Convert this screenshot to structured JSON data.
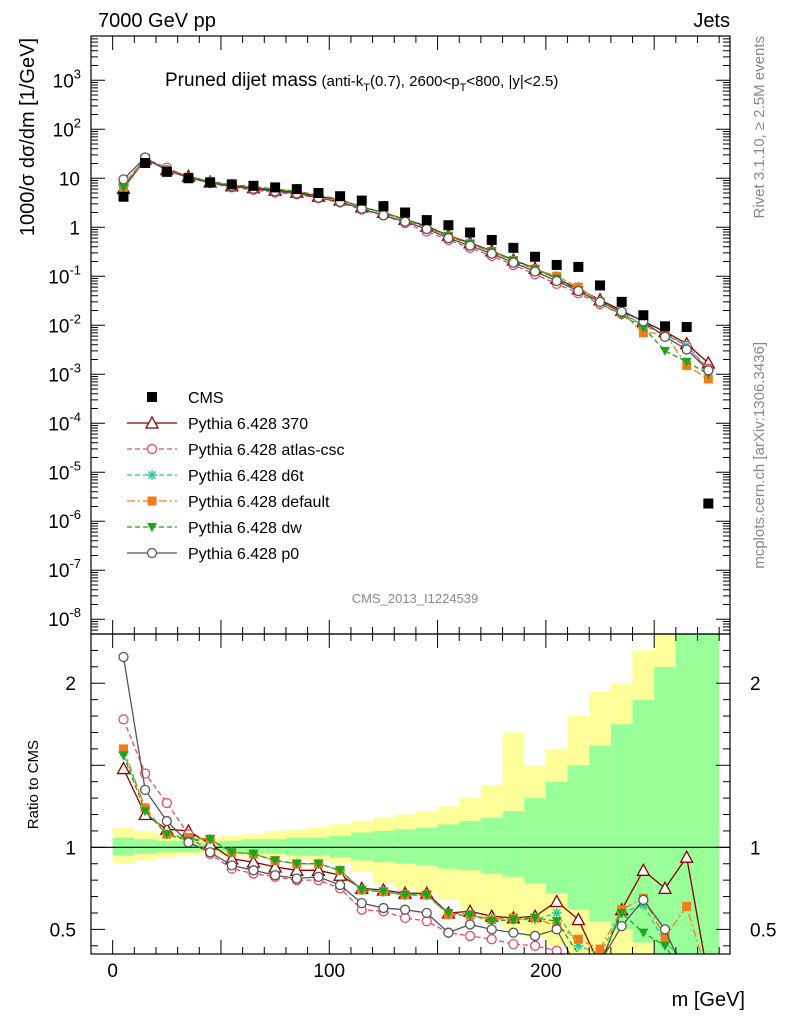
{
  "header": {
    "left": "7000 GeV pp",
    "right": "Jets"
  },
  "side_text": {
    "rivet": "Rivet 3.1.10, ≥ 2.5M events",
    "mcplots": "mcplots.cern.ch [arXiv:1306.3436]"
  },
  "chart_data": {
    "type": "line",
    "title_main": "Pruned dijet mass",
    "title_detail": "(anti-kT(0.7), 2600<pT<800, |y|<2.5)",
    "analysis_label": "CMS_2013_I1224539",
    "xlabel": "m [GeV]",
    "ylabel_top": "1000/σ dσ/dm [1/GeV]",
    "ylabel_bottom": "Ratio to CMS",
    "xlim": [
      -10,
      285
    ],
    "ylim_top": [
      5e-09,
      8000
    ],
    "ylim_bottom": [
      0.35,
      2.3
    ],
    "x_ticks": [
      0,
      100,
      200
    ],
    "y_ticks_top": [
      {
        "v": 1e-08,
        "label": "10",
        "exp": "-8"
      },
      {
        "v": 1e-07,
        "label": "10",
        "exp": "-7"
      },
      {
        "v": 1e-06,
        "label": "10",
        "exp": "-6"
      },
      {
        "v": 1e-05,
        "label": "10",
        "exp": "-5"
      },
      {
        "v": 0.0001,
        "label": "10",
        "exp": "-4"
      },
      {
        "v": 0.001,
        "label": "10",
        "exp": "-3"
      },
      {
        "v": 0.01,
        "label": "10",
        "exp": "-2"
      },
      {
        "v": 0.1,
        "label": "10",
        "exp": "-1"
      },
      {
        "v": 1,
        "label": "1",
        "exp": ""
      },
      {
        "v": 10,
        "label": "10",
        "exp": ""
      },
      {
        "v": 100,
        "label": "10",
        "exp": "2"
      },
      {
        "v": 1000,
        "label": "10",
        "exp": "3"
      }
    ],
    "y_ticks_bottom": [
      0.5,
      1,
      2
    ],
    "x": [
      5,
      15,
      25,
      35,
      45,
      55,
      65,
      75,
      85,
      95,
      105,
      115,
      125,
      135,
      145,
      155,
      165,
      175,
      185,
      195,
      205,
      215,
      225,
      235,
      245,
      255,
      265,
      275
    ],
    "data": {
      "name": "CMS",
      "values": [
        4.2,
        20.5,
        13.5,
        10.0,
        8.2,
        7.5,
        7.0,
        6.5,
        6.0,
        5.0,
        4.3,
        3.5,
        2.7,
        2.0,
        1.4,
        1.1,
        0.78,
        0.55,
        0.38,
        0.25,
        0.17,
        0.155,
        0.065,
        0.03,
        0.016,
        0.0095,
        0.0092,
        2.3e-06
      ]
    },
    "series": [
      {
        "name": "Pythia 6.428 370",
        "color": "#8b0000",
        "dash": "",
        "marker": "triangle-open",
        "values": [
          6.2,
          24.5,
          15.0,
          11.0,
          8.4,
          7.0,
          6.4,
          5.7,
          5.2,
          4.3,
          3.6,
          2.6,
          2.0,
          1.45,
          1.05,
          0.68,
          0.48,
          0.33,
          0.215,
          0.145,
          0.09,
          0.055,
          0.033,
          0.02,
          0.012,
          0.0074,
          0.0042,
          0.0017
        ],
        "ratio": [
          1.48,
          1.2,
          1.11,
          1.1,
          1.02,
          0.93,
          0.91,
          0.88,
          0.86,
          0.86,
          0.83,
          0.75,
          0.74,
          0.72,
          0.72,
          0.6,
          0.61,
          0.58,
          0.57,
          0.58,
          0.67,
          0.56,
          0.28,
          0.62,
          0.86,
          0.75,
          0.94,
          0.2
        ]
      },
      {
        "name": "Pythia 6.428 atlas-csc",
        "color": "#e8496b",
        "dash": "5,3",
        "marker": "circle-open",
        "values": [
          7.5,
          25.0,
          16.5,
          10.5,
          8.0,
          6.5,
          5.8,
          5.1,
          4.7,
          3.9,
          3.2,
          2.3,
          1.75,
          1.22,
          0.82,
          0.55,
          0.38,
          0.26,
          0.17,
          0.11,
          0.07,
          0.045,
          0.027,
          0.017,
          0.01,
          0.0065,
          0.0038,
          0.0013
        ],
        "ratio": [
          1.78,
          1.45,
          1.27,
          1.08,
          0.96,
          0.87,
          0.84,
          0.82,
          0.8,
          0.8,
          0.75,
          0.62,
          0.61,
          0.57,
          0.55,
          0.48,
          0.46,
          0.44,
          0.41,
          0.4,
          0.37,
          0.3,
          0.25,
          0.25,
          0.2,
          0.2,
          0.2,
          0.2
        ]
      },
      {
        "name": "Pythia 6.428 d6t",
        "color": "#20c997",
        "dash": "5,3",
        "marker": "star",
        "values": [
          6.6,
          25.5,
          14.6,
          10.5,
          8.6,
          7.3,
          6.7,
          6.0,
          5.4,
          4.5,
          3.7,
          2.6,
          1.95,
          1.42,
          1.0,
          0.66,
          0.46,
          0.32,
          0.21,
          0.14,
          0.1,
          0.06,
          0.03,
          0.018,
          0.01,
          0.0068,
          0.0038,
          0.0012
        ],
        "ratio": [
          1.58,
          1.24,
          1.08,
          1.05,
          1.05,
          0.97,
          0.96,
          0.92,
          0.9,
          0.9,
          0.86,
          0.74,
          0.73,
          0.71,
          0.71,
          0.59,
          0.58,
          0.57,
          0.56,
          0.56,
          0.6,
          0.4,
          0.35,
          0.6,
          0.65,
          0.42,
          0.3,
          0.2
        ]
      },
      {
        "name": "Pythia 6.428 default",
        "color": "#f07d1d",
        "dash": "8,3,2,3",
        "marker": "square",
        "values": [
          6.6,
          25.5,
          14.6,
          10.6,
          8.6,
          7.3,
          6.7,
          6.0,
          5.4,
          4.5,
          3.7,
          2.6,
          1.95,
          1.42,
          1.0,
          0.66,
          0.46,
          0.32,
          0.21,
          0.14,
          0.1,
          0.06,
          0.03,
          0.018,
          0.007,
          0.0068,
          0.0015,
          0.0008
        ],
        "ratio": [
          1.6,
          1.24,
          1.08,
          1.06,
          1.05,
          0.97,
          0.96,
          0.92,
          0.9,
          0.9,
          0.86,
          0.74,
          0.73,
          0.71,
          0.71,
          0.59,
          0.59,
          0.56,
          0.57,
          0.57,
          0.52,
          0.44,
          0.38,
          0.62,
          0.69,
          0.45,
          0.64,
          0.2
        ]
      },
      {
        "name": "Pythia 6.428 dw",
        "color": "#1da51d",
        "dash": "5,3",
        "marker": "triangle-down",
        "values": [
          6.5,
          25.5,
          14.6,
          10.4,
          8.6,
          7.3,
          6.7,
          6.0,
          5.4,
          4.5,
          3.7,
          2.6,
          1.95,
          1.42,
          1.0,
          0.66,
          0.46,
          0.32,
          0.21,
          0.14,
          0.09,
          0.05,
          0.028,
          0.016,
          0.009,
          0.003,
          0.0018,
          0.001
        ],
        "ratio": [
          1.56,
          1.22,
          1.08,
          1.04,
          1.05,
          0.97,
          0.96,
          0.92,
          0.9,
          0.9,
          0.86,
          0.74,
          0.73,
          0.71,
          0.71,
          0.6,
          0.59,
          0.55,
          0.56,
          0.57,
          0.55,
          0.35,
          0.3,
          0.6,
          0.48,
          0.4,
          0.2,
          0.2
        ]
      },
      {
        "name": "Pythia 6.428 p0",
        "color": "#555555",
        "dash": "",
        "marker": "circle-open",
        "values": [
          9.5,
          26.5,
          14.5,
          10.3,
          8.0,
          6.8,
          6.1,
          5.4,
          4.9,
          4.0,
          3.3,
          2.4,
          1.75,
          1.3,
          0.92,
          0.6,
          0.42,
          0.29,
          0.19,
          0.125,
          0.08,
          0.05,
          0.03,
          0.019,
          0.012,
          0.0058,
          0.0032,
          0.0012
        ],
        "ratio": [
          2.16,
          1.35,
          1.16,
          1.03,
          0.97,
          0.89,
          0.86,
          0.83,
          0.81,
          0.82,
          0.77,
          0.66,
          0.63,
          0.62,
          0.6,
          0.48,
          0.53,
          0.5,
          0.48,
          0.46,
          0.5,
          0.25,
          0.3,
          0.52,
          0.68,
          0.5,
          0.2,
          0.2
        ]
      }
    ],
    "uncertainty_band": {
      "x_edges": [
        0,
        10,
        20,
        30,
        40,
        50,
        60,
        70,
        80,
        90,
        100,
        110,
        120,
        130,
        140,
        150,
        160,
        170,
        180,
        190,
        200,
        210,
        220,
        230,
        240,
        250,
        260,
        270,
        280
      ],
      "inner_low": [
        0.95,
        0.96,
        0.97,
        0.97,
        0.98,
        0.97,
        0.96,
        0.96,
        0.95,
        0.95,
        0.94,
        0.92,
        0.91,
        0.9,
        0.89,
        0.87,
        0.86,
        0.84,
        0.82,
        0.78,
        0.72,
        0.62,
        0.55,
        0.5,
        0.42,
        0.35,
        0.35,
        0.35
      ],
      "inner_high": [
        1.06,
        1.05,
        1.04,
        1.04,
        1.03,
        1.04,
        1.05,
        1.05,
        1.06,
        1.06,
        1.07,
        1.09,
        1.1,
        1.11,
        1.12,
        1.14,
        1.16,
        1.18,
        1.22,
        1.3,
        1.4,
        1.5,
        1.62,
        1.75,
        1.9,
        2.1,
        2.3,
        2.3
      ],
      "outer_low": [
        0.9,
        0.92,
        0.94,
        0.95,
        0.96,
        0.95,
        0.94,
        0.94,
        0.93,
        0.92,
        0.9,
        0.85,
        0.78,
        0.75,
        0.72,
        0.68,
        0.62,
        0.55,
        0.5,
        0.45,
        0.4,
        0.35,
        0.35,
        0.35,
        0.35,
        0.35,
        0.35,
        0.35
      ],
      "outer_high": [
        1.12,
        1.1,
        1.08,
        1.07,
        1.06,
        1.07,
        1.08,
        1.1,
        1.11,
        1.12,
        1.14,
        1.16,
        1.18,
        1.2,
        1.22,
        1.25,
        1.3,
        1.38,
        1.7,
        1.5,
        1.6,
        1.8,
        1.95,
        2.0,
        2.2,
        2.3,
        2.3,
        2.3
      ]
    },
    "colors": {
      "band_inner": "#99ff99",
      "band_outer": "#ffff99",
      "data": "#000000"
    },
    "legend_position": "left",
    "grid": false
  }
}
